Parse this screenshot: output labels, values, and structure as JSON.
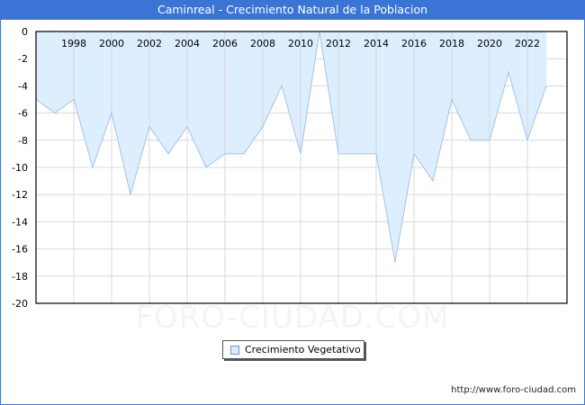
{
  "title": "Caminreal - Crecimiento Natural de la Poblacion",
  "watermark": "FORO-CIUDAD.COM",
  "footer_url": "http://www.foro-ciudad.com",
  "legend": {
    "label": "Crecimiento Vegetativo"
  },
  "colors": {
    "header": "#3a75d6",
    "fill": "#ddeeff",
    "line": "#a4c2ec",
    "grid": "#d8d8d8"
  },
  "chart_data": {
    "type": "area",
    "title": "Caminreal - Crecimiento Natural de la Poblacion",
    "xlabel": "",
    "ylabel": "",
    "x": [
      1996,
      1997,
      1998,
      1999,
      2000,
      2001,
      2002,
      2003,
      2004,
      2005,
      2006,
      2007,
      2008,
      2009,
      2010,
      2011,
      2012,
      2013,
      2014,
      2015,
      2016,
      2017,
      2018,
      2019,
      2020,
      2021,
      2022,
      2023
    ],
    "series": [
      {
        "name": "Crecimiento Vegetativo",
        "values": [
          -5,
          -6,
          -5,
          -10,
          -6,
          -12,
          -7,
          -9,
          -7,
          -10,
          -9,
          -9,
          -7,
          -4,
          -9,
          0,
          -9,
          -9,
          -9,
          -17,
          -9,
          -11,
          -5,
          -8,
          -8,
          -3,
          -8,
          -4
        ]
      }
    ],
    "xticks": [
      1998,
      2000,
      2002,
      2004,
      2006,
      2008,
      2010,
      2012,
      2014,
      2016,
      2018,
      2020,
      2022
    ],
    "yticks": [
      0,
      -2,
      -4,
      -6,
      -8,
      -10,
      -12,
      -14,
      -16,
      -18,
      -20
    ],
    "ylim": [
      -20,
      0
    ],
    "grid": true,
    "legend_position": "bottom"
  }
}
